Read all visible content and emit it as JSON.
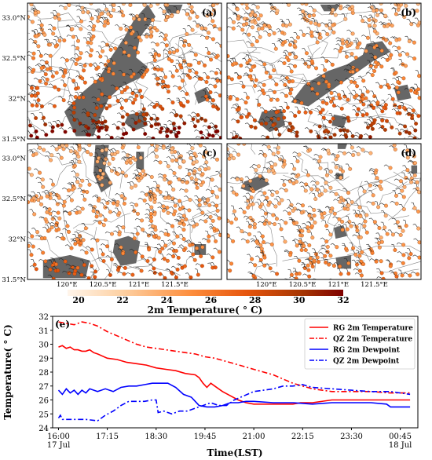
{
  "maps": {
    "type": "station-map",
    "panels": [
      {
        "label": "(a)",
        "seed": 11,
        "band": "west",
        "warm": 1.0
      },
      {
        "label": "(b)",
        "seed": 23,
        "band": "east",
        "warm": 0.75
      },
      {
        "label": "(c)",
        "seed": 37,
        "band": "cells",
        "warm": 0.45
      },
      {
        "label": "(d)",
        "seed": 51,
        "band": "sparse",
        "warm": 0.3
      }
    ],
    "lat_ticks": [
      {
        "value": 33.0,
        "label": "33.0°N"
      },
      {
        "value": 32.5,
        "label": "32.5°N"
      },
      {
        "value": 32.0,
        "label": "32°N"
      },
      {
        "value": 31.5,
        "label": "31.5°N"
      }
    ],
    "lon_ticks": [
      {
        "value": 120.0,
        "label": "120°E"
      },
      {
        "value": 120.5,
        "label": "120.5°E"
      },
      {
        "value": 121.0,
        "label": "121°E"
      },
      {
        "value": 121.5,
        "label": "121.5°E"
      }
    ],
    "lon_range": [
      119.45,
      122.15
    ],
    "lat_range": [
      31.5,
      33.18
    ],
    "radar_color": "#666666"
  },
  "colorbar": {
    "ticks": [
      20,
      22,
      24,
      26,
      28,
      30,
      32
    ],
    "range": [
      19.5,
      32
    ],
    "label": "2m Temperature( ° C)",
    "colors": [
      "#fff5eb",
      "#fdd0a2",
      "#fd8d3c",
      "#e6550d",
      "#a63603",
      "#7f0000"
    ]
  },
  "chart_data": {
    "type": "line",
    "panel_label": "(e)",
    "title": "",
    "xlabel": "Time(LST)",
    "ylabel": "Temperature( ° C)",
    "ylim": [
      24,
      32
    ],
    "y_ticks": [
      24,
      25,
      26,
      27,
      28,
      29,
      30,
      31,
      32
    ],
    "x_ticks": [
      {
        "h": 16.0,
        "label": "16:00",
        "sub": "17 Jul"
      },
      {
        "h": 17.25,
        "label": "17:15",
        "sub": ""
      },
      {
        "h": 18.5,
        "label": "18:30",
        "sub": ""
      },
      {
        "h": 19.75,
        "label": "19:45",
        "sub": ""
      },
      {
        "h": 21.0,
        "label": "21:00",
        "sub": ""
      },
      {
        "h": 22.25,
        "label": "22:15",
        "sub": ""
      },
      {
        "h": 23.5,
        "label": "23:30",
        "sub": ""
      },
      {
        "h": 24.75,
        "label": "00:45",
        "sub": "18 Jul"
      }
    ],
    "xlim": [
      15.85,
      25.2
    ],
    "legend_position": "top-right",
    "series": [
      {
        "name": "RG 2m Temperature",
        "color": "#ff0000",
        "dash": "solid",
        "points": [
          [
            16.0,
            29.8
          ],
          [
            16.1,
            29.9
          ],
          [
            16.2,
            29.7
          ],
          [
            16.3,
            29.8
          ],
          [
            16.4,
            29.6
          ],
          [
            16.5,
            29.6
          ],
          [
            16.6,
            29.5
          ],
          [
            16.7,
            29.5
          ],
          [
            16.8,
            29.6
          ],
          [
            16.9,
            29.4
          ],
          [
            17.0,
            29.3
          ],
          [
            17.25,
            29.0
          ],
          [
            17.5,
            28.9
          ],
          [
            17.75,
            28.7
          ],
          [
            18.0,
            28.6
          ],
          [
            18.25,
            28.5
          ],
          [
            18.5,
            28.3
          ],
          [
            18.75,
            28.2
          ],
          [
            19.0,
            28.1
          ],
          [
            19.25,
            27.9
          ],
          [
            19.5,
            27.8
          ],
          [
            19.6,
            27.6
          ],
          [
            19.7,
            27.2
          ],
          [
            19.8,
            26.9
          ],
          [
            19.9,
            27.2
          ],
          [
            20.0,
            27.0
          ],
          [
            20.2,
            26.6
          ],
          [
            20.4,
            26.3
          ],
          [
            20.6,
            26.0
          ],
          [
            20.8,
            25.8
          ],
          [
            21.0,
            25.7
          ],
          [
            21.5,
            25.7
          ],
          [
            22.0,
            25.7
          ],
          [
            22.2,
            25.8
          ],
          [
            22.5,
            25.8
          ],
          [
            23.0,
            26.0
          ],
          [
            23.5,
            26.0
          ],
          [
            24.0,
            26.0
          ],
          [
            24.5,
            26.0
          ],
          [
            25.0,
            26.0
          ]
        ]
      },
      {
        "name": "QZ 2m Temperature",
        "color": "#ff0000",
        "dash": "dashdot",
        "points": [
          [
            16.0,
            31.6
          ],
          [
            16.2,
            31.5
          ],
          [
            16.4,
            31.4
          ],
          [
            16.6,
            31.6
          ],
          [
            16.8,
            31.5
          ],
          [
            17.0,
            31.3
          ],
          [
            17.25,
            30.9
          ],
          [
            17.5,
            30.6
          ],
          [
            17.75,
            30.3
          ],
          [
            18.0,
            30.0
          ],
          [
            18.25,
            29.8
          ],
          [
            18.5,
            29.7
          ],
          [
            18.75,
            29.6
          ],
          [
            19.0,
            29.5
          ],
          [
            19.25,
            29.4
          ],
          [
            19.5,
            29.3
          ],
          [
            19.75,
            29.1
          ],
          [
            20.0,
            29.0
          ],
          [
            20.25,
            28.8
          ],
          [
            20.5,
            28.6
          ],
          [
            20.75,
            28.4
          ],
          [
            21.0,
            28.2
          ],
          [
            21.25,
            28.0
          ],
          [
            21.5,
            27.8
          ],
          [
            21.75,
            27.5
          ],
          [
            22.0,
            27.2
          ],
          [
            22.25,
            27.0
          ],
          [
            22.5,
            26.8
          ],
          [
            22.75,
            26.7
          ],
          [
            23.0,
            26.6
          ],
          [
            23.5,
            26.6
          ],
          [
            24.0,
            26.6
          ],
          [
            24.5,
            26.5
          ],
          [
            25.0,
            26.5
          ]
        ]
      },
      {
        "name": "RG 2m Dewpoint",
        "color": "#0000ff",
        "dash": "solid",
        "points": [
          [
            16.0,
            26.7
          ],
          [
            16.1,
            26.4
          ],
          [
            16.2,
            26.8
          ],
          [
            16.3,
            26.5
          ],
          [
            16.4,
            26.7
          ],
          [
            16.5,
            26.4
          ],
          [
            16.6,
            26.7
          ],
          [
            16.7,
            26.5
          ],
          [
            16.8,
            26.8
          ],
          [
            17.0,
            26.6
          ],
          [
            17.2,
            26.8
          ],
          [
            17.4,
            26.6
          ],
          [
            17.6,
            26.9
          ],
          [
            17.8,
            27.0
          ],
          [
            18.0,
            27.0
          ],
          [
            18.2,
            27.1
          ],
          [
            18.4,
            27.2
          ],
          [
            18.6,
            27.2
          ],
          [
            18.8,
            27.2
          ],
          [
            19.0,
            26.9
          ],
          [
            19.2,
            26.4
          ],
          [
            19.4,
            26.2
          ],
          [
            19.6,
            25.6
          ],
          [
            19.8,
            25.5
          ],
          [
            20.0,
            25.5
          ],
          [
            20.2,
            25.6
          ],
          [
            20.4,
            25.8
          ],
          [
            20.6,
            25.8
          ],
          [
            20.8,
            25.9
          ],
          [
            21.0,
            25.9
          ],
          [
            21.5,
            25.8
          ],
          [
            22.0,
            25.8
          ],
          [
            22.5,
            25.7
          ],
          [
            23.0,
            25.8
          ],
          [
            24.0,
            25.8
          ],
          [
            24.4,
            25.7
          ],
          [
            24.5,
            25.5
          ],
          [
            25.0,
            25.5
          ]
        ]
      },
      {
        "name": "QZ 2m Dewpoint",
        "color": "#0000ff",
        "dash": "dashdot",
        "points": [
          [
            16.0,
            24.7
          ],
          [
            16.05,
            24.9
          ],
          [
            16.1,
            24.6
          ],
          [
            16.3,
            24.6
          ],
          [
            16.5,
            24.6
          ],
          [
            16.7,
            24.6
          ],
          [
            17.0,
            24.5
          ],
          [
            17.2,
            24.9
          ],
          [
            17.4,
            25.2
          ],
          [
            17.6,
            25.6
          ],
          [
            17.8,
            25.9
          ],
          [
            18.0,
            25.9
          ],
          [
            18.2,
            25.9
          ],
          [
            18.4,
            26.0
          ],
          [
            18.5,
            26.0
          ],
          [
            18.55,
            25.1
          ],
          [
            18.7,
            25.2
          ],
          [
            18.9,
            25.0
          ],
          [
            19.1,
            25.2
          ],
          [
            19.3,
            25.2
          ],
          [
            19.5,
            25.4
          ],
          [
            19.7,
            25.6
          ],
          [
            19.9,
            25.8
          ],
          [
            20.1,
            25.6
          ],
          [
            20.3,
            25.6
          ],
          [
            20.5,
            26.0
          ],
          [
            20.75,
            26.3
          ],
          [
            21.0,
            26.6
          ],
          [
            21.25,
            26.7
          ],
          [
            21.5,
            26.8
          ],
          [
            21.75,
            27.0
          ],
          [
            22.0,
            27.0
          ],
          [
            22.25,
            27.1
          ],
          [
            22.5,
            26.9
          ],
          [
            23.0,
            26.8
          ],
          [
            23.5,
            26.7
          ],
          [
            24.0,
            26.6
          ],
          [
            24.5,
            26.6
          ],
          [
            25.0,
            26.4
          ]
        ]
      }
    ]
  }
}
